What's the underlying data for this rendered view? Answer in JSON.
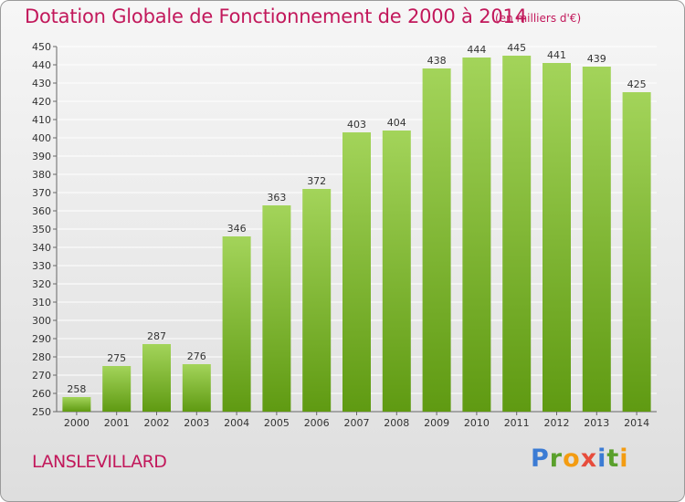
{
  "header": {
    "title": "Dotation Globale de Fonctionnement de 2000 à 2014",
    "subtitle": "(en milliers d'€)"
  },
  "footer": {
    "commune": "LANSLEVILLARD",
    "logo_text": "Proxiti"
  },
  "colors": {
    "title": "#c2185b",
    "bar_light": "#a3d45a",
    "bar_dark": "#5f9a12",
    "grid": "#ffffff"
  },
  "chart_data": {
    "type": "bar",
    "title": "Dotation Globale de Fonctionnement de 2000 à 2014",
    "subtitle": "(en milliers d'€)",
    "xlabel": "",
    "ylabel": "",
    "categories": [
      "2000",
      "2001",
      "2002",
      "2003",
      "2004",
      "2005",
      "2006",
      "2007",
      "2008",
      "2009",
      "2010",
      "2011",
      "2012",
      "2013",
      "2014"
    ],
    "values": [
      258,
      275,
      287,
      276,
      346,
      363,
      372,
      403,
      404,
      438,
      444,
      445,
      441,
      439,
      425
    ],
    "ylim": [
      250,
      450
    ],
    "ytick_step": 10,
    "grid": true,
    "legend": "none"
  }
}
